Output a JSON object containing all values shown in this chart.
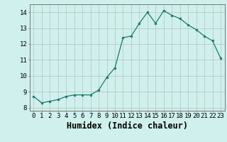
{
  "x": [
    0,
    1,
    2,
    3,
    4,
    5,
    6,
    7,
    8,
    9,
    10,
    11,
    12,
    13,
    14,
    15,
    16,
    17,
    18,
    19,
    20,
    21,
    22,
    23
  ],
  "y": [
    8.7,
    8.3,
    8.4,
    8.5,
    8.7,
    8.8,
    8.8,
    8.8,
    9.1,
    9.9,
    10.5,
    12.4,
    12.5,
    13.3,
    14.0,
    13.3,
    14.1,
    13.8,
    13.6,
    13.2,
    12.9,
    12.5,
    12.2,
    11.1
  ],
  "xlabel": "Humidex (Indice chaleur)",
  "ylim": [
    7.8,
    14.5
  ],
  "xlim": [
    -0.5,
    23.5
  ],
  "yticks": [
    8,
    9,
    10,
    11,
    12,
    13,
    14
  ],
  "xticks": [
    0,
    1,
    2,
    3,
    4,
    5,
    6,
    7,
    8,
    9,
    10,
    11,
    12,
    13,
    14,
    15,
    16,
    17,
    18,
    19,
    20,
    21,
    22,
    23
  ],
  "line_color": "#1a7a6e",
  "marker": "o",
  "marker_size": 2.0,
  "bg_color": "#cff0ec",
  "grid_color": "#aaaaaa",
  "spine_color": "#666666",
  "tick_label_fontsize": 6.5,
  "xlabel_fontsize": 8.5
}
